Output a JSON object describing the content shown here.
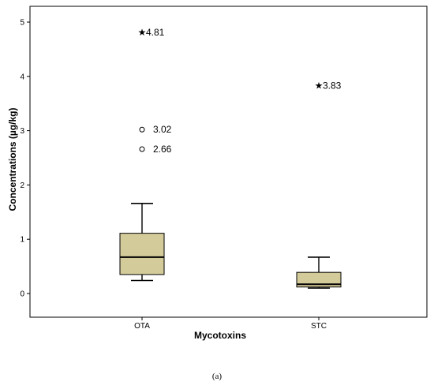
{
  "chart_data": {
    "type": "boxplot",
    "xlabel": "Mycotoxins",
    "ylabel": "Concentrations (µg/kg)",
    "categories": [
      "OTA",
      "STC"
    ],
    "ylim": [
      -0.2,
      5.2
    ],
    "yticks": [
      "0",
      "1",
      "2",
      "3",
      "4",
      "5"
    ],
    "grid": false,
    "colors": {
      "box_fill": "#d4cb9b",
      "stroke": "#000000"
    },
    "boxes": [
      {
        "category": "OTA",
        "whisker_low": 0.24,
        "q1": 0.35,
        "median": 0.67,
        "q3": 1.11,
        "whisker_high": 1.66,
        "outliers": [
          {
            "value": 3.02,
            "label": "3.02",
            "marker": "circle"
          },
          {
            "value": 2.66,
            "label": "2.66",
            "marker": "circle"
          }
        ],
        "extremes": [
          {
            "value": 4.81,
            "label": "4.81",
            "marker": "star"
          }
        ]
      },
      {
        "category": "STC",
        "whisker_low": 0.1,
        "q1": 0.12,
        "median": 0.17,
        "q3": 0.39,
        "whisker_high": 0.67,
        "outliers": [],
        "extremes": [
          {
            "value": 3.83,
            "label": "3.83",
            "marker": "star"
          }
        ]
      }
    ]
  },
  "caption": "(a)"
}
